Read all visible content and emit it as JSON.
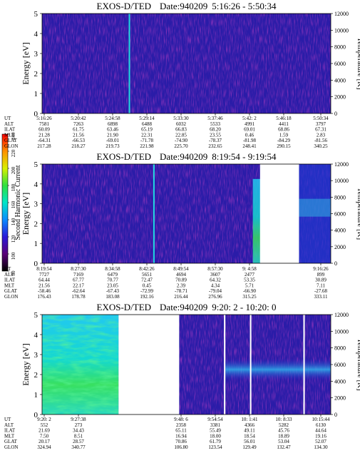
{
  "chart_data": [
    {
      "type": "heatmap",
      "title": "EXOS-D/TED",
      "date_label": "Date:940209",
      "time_range": "5:16:26 - 5:50:34",
      "ylabel": "Energy [eV]",
      "y2label": "Temperature [K]",
      "ylim": [
        0,
        5
      ],
      "yticks": [
        "0",
        "1",
        "2",
        "3",
        "4",
        "5"
      ],
      "y2lim": [
        0,
        12000
      ],
      "y2ticks": [
        "0",
        "2000",
        "4000",
        "6000",
        "8000",
        "10000",
        "12000"
      ],
      "gaps": [],
      "bright_lines": [
        0.3
      ],
      "row_labels": [
        "UT",
        "ALT",
        "ILAT",
        "MLT",
        "GLAT",
        "GLON"
      ],
      "columns": [
        [
          "5:16:26",
          "7581",
          "60.09",
          "21.28",
          "-64.31",
          "217.28"
        ],
        [
          "5:20:42",
          "7263",
          "61.75",
          "21.56",
          "-66.53",
          "218.27"
        ],
        [
          "5:24:58",
          "6898",
          "63.46",
          "21.90",
          "-69.01",
          "219.73"
        ],
        [
          "5:29:14",
          "6488",
          "65.19",
          "22.31",
          "-71.78",
          "221.98"
        ],
        [
          "5:33:30",
          "6032",
          "66.83",
          "22.85",
          "-74.90",
          "225.70"
        ],
        [
          "5:37:46",
          "5533",
          "68.20",
          "23.55",
          "-78.37",
          "232.65"
        ],
        [
          "5:42: 2",
          "4991",
          "69.01",
          "0.46",
          "-81.98",
          "248.41"
        ],
        [
          "5:46:18",
          "4411",
          "68.86",
          "1.59",
          "-84.29",
          "290.15"
        ],
        [
          "5:50:34",
          "3797",
          "67.31",
          "2.83",
          "-81.56",
          "340.25"
        ]
      ]
    },
    {
      "type": "heatmap",
      "title": "EXOS-D/TED",
      "date_label": "Date:940209",
      "time_range": "8:19:54 - 9:19:54",
      "ylabel": "Energy [eV]",
      "y2label": "Temperature [K]",
      "ylim": [
        0,
        5
      ],
      "yticks": [
        "0",
        "1",
        "2",
        "3",
        "4",
        "5"
      ],
      "y2lim": [
        0,
        12000
      ],
      "y2ticks": [
        "0",
        "2000",
        "4000",
        "6000",
        "8000",
        "10000",
        "12000"
      ],
      "gaps": [
        [
          0.755,
          0.89
        ]
      ],
      "bright_lines": [
        0.385
      ],
      "row_labels": [
        "UT",
        "ALT",
        "ILAT",
        "MLT",
        "GLAT",
        "GLON"
      ],
      "columns": [
        [
          "8:19:54",
          "7727",
          "64.44",
          "21.56",
          "-58.46",
          "176.43"
        ],
        [
          "8:27:30",
          "7169",
          "67.77",
          "22.17",
          "-62.64",
          "178.78"
        ],
        [
          "8:34:58",
          "6479",
          "70.77",
          "23.05",
          "-67.43",
          "183.08"
        ],
        [
          "8:42:26",
          "5651",
          "72.47",
          "0.45",
          "-72.99",
          "192.16"
        ],
        [
          "8:49:54",
          "4694",
          "70.89",
          "2.39",
          "-78.71",
          "216.44"
        ],
        [
          "8:57:30",
          "3607",
          "64.32",
          "4.34",
          "-79.04",
          "276.96"
        ],
        [
          "9: 4:58",
          "2477",
          "53.35",
          "5.71",
          "-66.90",
          "315.25"
        ],
        [
          "",
          "",
          "",
          "",
          "",
          ""
        ],
        [
          "9:16:26",
          "899",
          "30.89",
          "7.11",
          "-27.68",
          "333.11"
        ]
      ]
    },
    {
      "type": "heatmap",
      "title": "EXOS-D/TED",
      "date_label": "Date:940209",
      "time_range": "9:20: 2 - 10:20: 0",
      "ylabel": "Energy [eV]",
      "y2label": "Temperature [K]",
      "ylim": [
        0,
        5
      ],
      "yticks": [
        "0",
        "1",
        "2",
        "3",
        "4",
        "5"
      ],
      "y2lim": [
        0,
        12000
      ],
      "y2ticks": [
        "0",
        "2000",
        "4000",
        "6000",
        "8000",
        "10000",
        "12000"
      ],
      "gaps": [
        [
          0.265,
          0.475
        ],
        [
          0.63,
          0.635
        ],
        [
          0.72,
          0.725
        ],
        [
          0.905,
          0.91
        ]
      ],
      "bright_lines": [],
      "row_labels": [
        "UT",
        "ALT",
        "ILAT",
        "MLT",
        "GLAT",
        "GLON"
      ],
      "columns": [
        [
          "9:20: 2",
          "552",
          "21.69",
          "7.50",
          "20.17",
          "324.94"
        ],
        [
          "9:27:38",
          "273",
          "34.43",
          "8.51",
          "28.57",
          "340.77"
        ],
        [
          "",
          "",
          "",
          "",
          "",
          ""
        ],
        [
          "",
          "",
          "",
          "",
          "",
          ""
        ],
        [
          "9:48: 6",
          "2358",
          "65.11",
          "16.94",
          "70.86",
          "106.80"
        ],
        [
          "9:54:54",
          "3381",
          "55.49",
          "18.00",
          "61.79",
          "123.54"
        ],
        [
          "10: 1:41",
          "4366",
          "49.11",
          "18.54",
          "56.01",
          "129.49"
        ],
        [
          "10: 8:33",
          "5282",
          "45.76",
          "18.89",
          "53.04",
          "132.47"
        ],
        [
          "10:15:44",
          "6130",
          "44.64",
          "19.16",
          "52.07",
          "134.30"
        ]
      ]
    }
  ],
  "colorbar": {
    "label": "Second Harmonic Current",
    "ticks": [
      "80",
      "100",
      "120",
      "140",
      "160",
      "180",
      "200",
      "220",
      "240"
    ],
    "colors": [
      "#000000",
      "#5a0078",
      "#2a1ad8",
      "#0a8cff",
      "#00e6c8",
      "#30e040",
      "#d8f000",
      "#ff9000",
      "#ff0000"
    ]
  }
}
